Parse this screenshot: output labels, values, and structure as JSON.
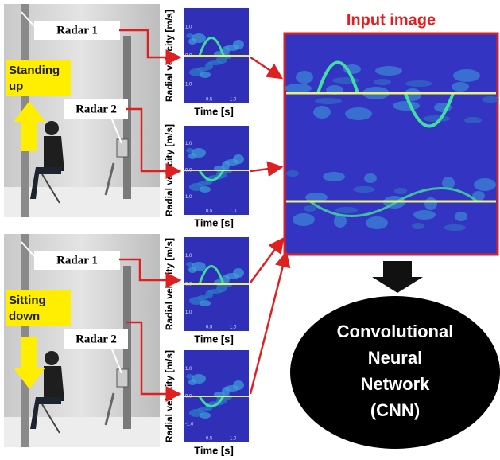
{
  "photos": [
    {
      "label_lines": [
        "Standing",
        "up"
      ],
      "radars": [
        "Radar 1",
        "Radar 2"
      ]
    },
    {
      "label_lines": [
        "Sitting",
        "down"
      ],
      "radars": [
        "Radar 1",
        "Radar 2"
      ]
    }
  ],
  "spectrograms": [
    {
      "y_label": "Radial velocity [m/s]",
      "x_label": "Time [s]",
      "y_ticks": [
        "1.0",
        "0.0",
        "1.0"
      ],
      "x_ticks": [
        "0.5",
        "1.0"
      ]
    },
    {
      "y_label": "Radial velocity [m/s]",
      "x_label": "Time [s]",
      "y_ticks": [
        "1.0",
        "0.0",
        "1.0"
      ],
      "x_ticks": [
        "0.5",
        "1.0"
      ]
    },
    {
      "y_label": "Radial velocity [m/s]",
      "x_label": "Time [s]",
      "y_ticks": [
        "1.0",
        "0.0",
        "1.0"
      ],
      "x_ticks": [
        "0.5",
        "1.0"
      ]
    },
    {
      "y_label": "Radial velocity [m/s]",
      "x_label": "Time [s]",
      "y_ticks": [
        "1.0",
        "0.0",
        "-1.0"
      ],
      "x_ticks": [
        "0.5",
        "1.0"
      ]
    }
  ],
  "input_image": {
    "title": "Input image"
  },
  "cnn": {
    "lines": [
      "Convolutional",
      "Neural",
      "Network",
      "(CNN)"
    ]
  }
}
